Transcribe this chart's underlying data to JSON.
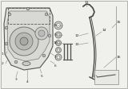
{
  "bg_color": "#f0f0ec",
  "border_color": "#999999",
  "callout_fs": 3.2,
  "callout_color": "#222222",
  "line_color": "#444444",
  "part_fill": "#e0e0dc",
  "part_edge": "#555555"
}
